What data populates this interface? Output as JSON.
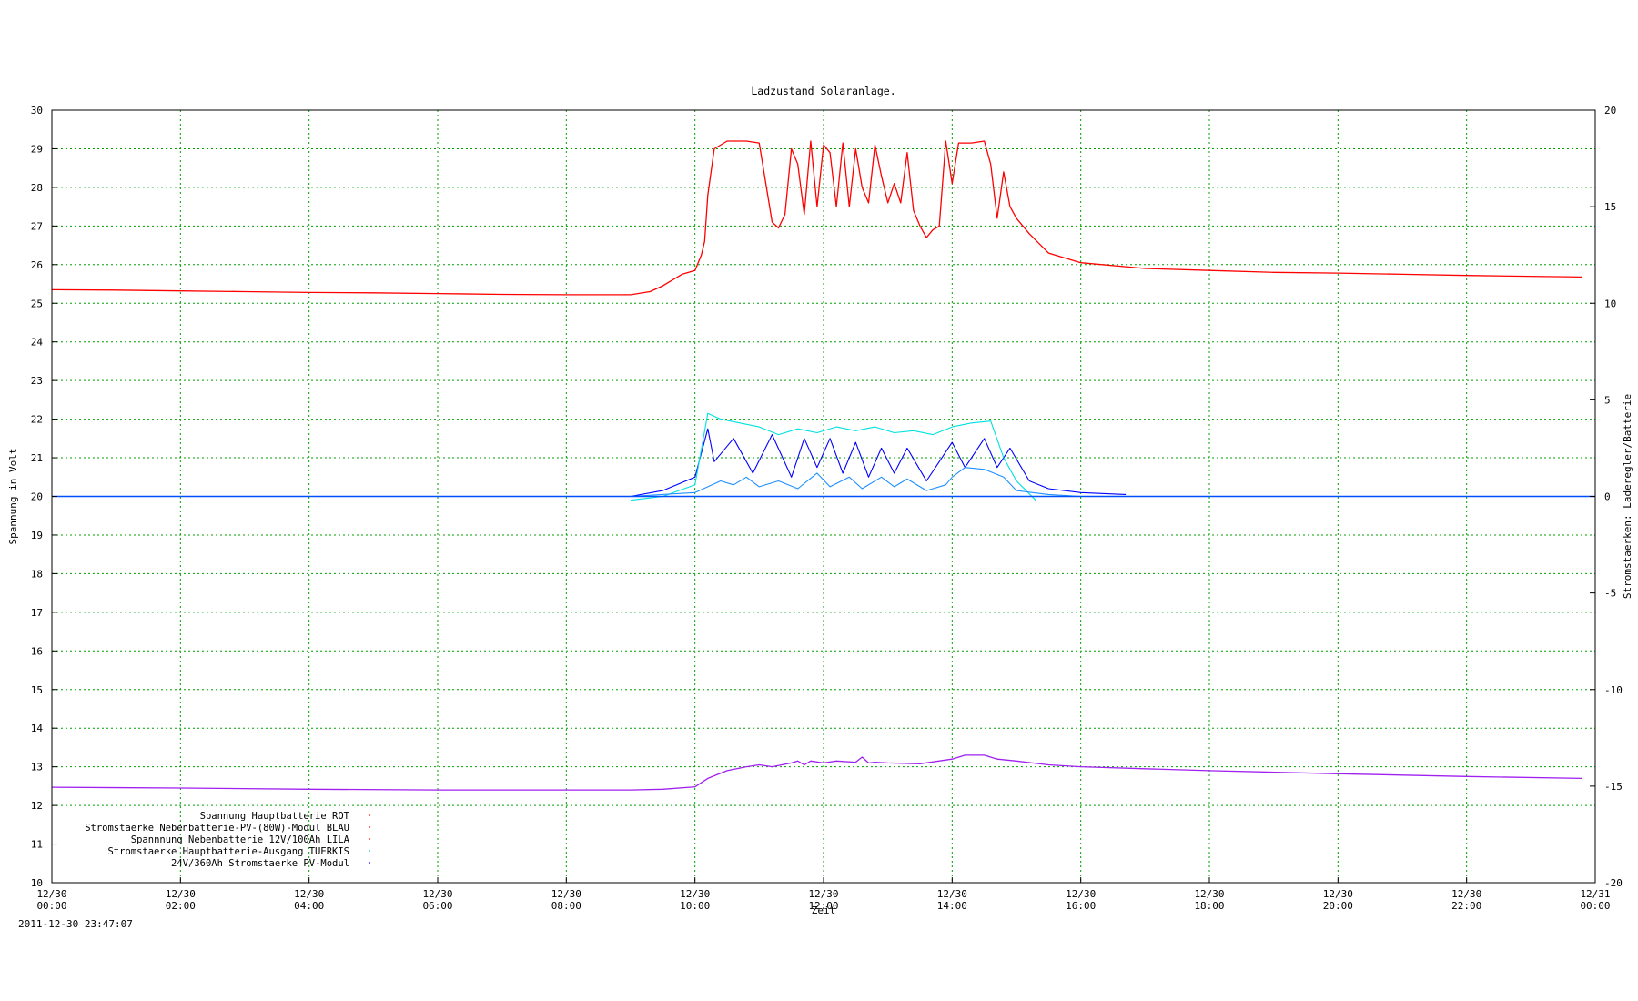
{
  "chart_data": {
    "type": "line",
    "title": "Ladzustand Solaranlage.",
    "xlabel": "Zeit",
    "ylabel": "Spannung in Volt",
    "y2label": "Stromstaerken: Laderegler/Batterie",
    "timestamp": "2011-12-30 23:47:07",
    "ylim": [
      10,
      30
    ],
    "y2lim": [
      -20,
      20
    ],
    "xlim": [
      0,
      24
    ],
    "grid": true,
    "legend_position": "bottom-left",
    "y_ticks": [
      "10",
      "11",
      "12",
      "13",
      "14",
      "15",
      "16",
      "17",
      "18",
      "19",
      "20",
      "21",
      "22",
      "23",
      "24",
      "25",
      "26",
      "27",
      "28",
      "29",
      "30"
    ],
    "y2_ticks": [
      "-20",
      "-15",
      "-10",
      "-5",
      "0",
      "5",
      "10",
      "15",
      "20"
    ],
    "x_ticks": [
      {
        "date": "12/30",
        "time": "00:00"
      },
      {
        "date": "12/30",
        "time": "02:00"
      },
      {
        "date": "12/30",
        "time": "04:00"
      },
      {
        "date": "12/30",
        "time": "06:00"
      },
      {
        "date": "12/30",
        "time": "08:00"
      },
      {
        "date": "12/30",
        "time": "10:00"
      },
      {
        "date": "12/30",
        "time": "12:00"
      },
      {
        "date": "12/30",
        "time": "14:00"
      },
      {
        "date": "12/30",
        "time": "16:00"
      },
      {
        "date": "12/30",
        "time": "18:00"
      },
      {
        "date": "12/30",
        "time": "20:00"
      },
      {
        "date": "12/30",
        "time": "22:00"
      },
      {
        "date": "12/31",
        "time": "00:00"
      }
    ],
    "legend": [
      {
        "label": "Spannung Hauptbatterie ROT",
        "color": "#ff0000"
      },
      {
        "label": "Stromstaerke Nebenbatterie-PV-(80W)-Modul BLAU",
        "color": "#ff0000"
      },
      {
        "label": "Spannnung Nebenbatterie 12V/100Ah LILA",
        "color": "#ff0000"
      },
      {
        "label": "Stromstaerke Hauptbatterie-Ausgang TUERKIS",
        "color": "#00c0c0"
      },
      {
        "label": "24V/360Ah Stromstaerke PV-Modul",
        "color": "#0000ff"
      }
    ],
    "series": [
      {
        "color": "#ff0000",
        "axis": "left",
        "x": [
          0,
          1,
          2,
          3,
          4,
          5,
          6,
          7,
          8,
          9,
          9.3,
          9.5,
          9.8,
          10,
          10.1,
          10.15,
          10.2,
          10.3,
          10.5,
          10.8,
          11,
          11.2,
          11.3,
          11.4,
          11.5,
          11.6,
          11.7,
          11.8,
          11.9,
          12,
          12.1,
          12.2,
          12.3,
          12.4,
          12.5,
          12.6,
          12.7,
          12.8,
          12.9,
          13,
          13.1,
          13.2,
          13.3,
          13.4,
          13.5,
          13.6,
          13.7,
          13.8,
          13.9,
          14,
          14.1,
          14.3,
          14.5,
          14.6,
          14.7,
          14.8,
          14.9,
          15,
          15.2,
          15.5,
          16,
          17,
          18,
          19,
          20,
          21,
          22,
          23.8
        ],
        "y": [
          25.35,
          25.34,
          25.32,
          25.3,
          25.28,
          25.27,
          25.25,
          25.23,
          25.22,
          25.22,
          25.3,
          25.45,
          25.75,
          25.85,
          26.25,
          26.6,
          27.8,
          29.0,
          29.2,
          29.2,
          29.15,
          27.1,
          26.95,
          27.3,
          29.0,
          28.6,
          27.3,
          29.2,
          27.5,
          29.1,
          28.9,
          27.5,
          29.15,
          27.5,
          29.0,
          28.0,
          27.6,
          29.1,
          28.3,
          27.6,
          28.1,
          27.6,
          28.9,
          27.4,
          27.0,
          26.7,
          26.9,
          27.0,
          29.2,
          28.1,
          29.15,
          29.15,
          29.2,
          28.6,
          27.2,
          28.4,
          27.5,
          27.2,
          26.8,
          26.3,
          26.05,
          25.9,
          25.85,
          25.8,
          25.78,
          25.75,
          25.72,
          25.68
        ]
      },
      {
        "color": "#a020f0",
        "axis": "left",
        "x": [
          0,
          2,
          4,
          6,
          8,
          9,
          9.5,
          10,
          10.2,
          10.5,
          10.8,
          11,
          11.2,
          11.5,
          11.6,
          11.7,
          11.8,
          12,
          12.2,
          12.5,
          12.6,
          12.7,
          12.8,
          13,
          13.5,
          14,
          14.2,
          14.5,
          14.7,
          15,
          15.5,
          16,
          17,
          18,
          20,
          22,
          23.8
        ],
        "y": [
          12.47,
          12.45,
          12.42,
          12.4,
          12.4,
          12.4,
          12.42,
          12.48,
          12.7,
          12.9,
          13.0,
          13.05,
          13.0,
          13.1,
          13.15,
          13.05,
          13.15,
          13.1,
          13.15,
          13.12,
          13.25,
          13.1,
          13.12,
          13.1,
          13.08,
          13.2,
          13.3,
          13.3,
          13.2,
          13.15,
          13.05,
          13.0,
          12.95,
          12.9,
          12.82,
          12.75,
          12.7
        ]
      },
      {
        "color": "#0000ff",
        "axis": "right",
        "x": [
          0,
          9,
          9.5,
          10,
          10.2,
          10.3,
          10.6,
          10.9,
          11.2,
          11.5,
          11.7,
          11.9,
          12.1,
          12.3,
          12.5,
          12.7,
          12.9,
          13.1,
          13.3,
          13.6,
          14.0,
          14.2,
          14.5,
          14.7,
          14.9,
          15.2,
          15.5,
          16,
          16.7
        ],
        "y": [
          0,
          0,
          0.3,
          1.0,
          3.5,
          1.8,
          3.0,
          1.2,
          3.2,
          1.0,
          3.0,
          1.5,
          3.0,
          1.2,
          2.8,
          1.0,
          2.5,
          1.2,
          2.5,
          0.8,
          2.8,
          1.5,
          3.0,
          1.5,
          2.5,
          0.8,
          0.4,
          0.2,
          0.1
        ]
      },
      {
        "color": "#00e0e0",
        "axis": "right",
        "x": [
          9,
          9.5,
          10,
          10.2,
          10.4,
          10.7,
          11,
          11.3,
          11.6,
          11.9,
          12.2,
          12.5,
          12.8,
          13.1,
          13.4,
          13.7,
          14,
          14.3,
          14.6,
          14.8,
          15,
          15.3
        ],
        "y": [
          -0.2,
          0,
          0.6,
          4.3,
          4.0,
          3.8,
          3.6,
          3.2,
          3.5,
          3.3,
          3.6,
          3.4,
          3.6,
          3.3,
          3.4,
          3.2,
          3.6,
          3.8,
          3.9,
          2.0,
          0.8,
          -0.2
        ]
      },
      {
        "color": "#1e90ff",
        "axis": "right",
        "x": [
          0,
          9,
          10,
          10.2,
          10.4,
          10.6,
          10.8,
          11,
          11.3,
          11.6,
          11.9,
          12.1,
          12.4,
          12.6,
          12.9,
          13.1,
          13.3,
          13.6,
          13.9,
          14,
          14.2,
          14.5,
          14.8,
          15,
          15.5,
          16,
          17,
          23.8
        ],
        "y": [
          0,
          0,
          0.2,
          0.5,
          0.8,
          0.6,
          1.0,
          0.5,
          0.8,
          0.4,
          1.2,
          0.5,
          1.0,
          0.4,
          1.0,
          0.5,
          0.9,
          0.3,
          0.6,
          1.0,
          1.5,
          1.4,
          1.0,
          0.3,
          0.1,
          0,
          0,
          0
        ]
      }
    ]
  }
}
